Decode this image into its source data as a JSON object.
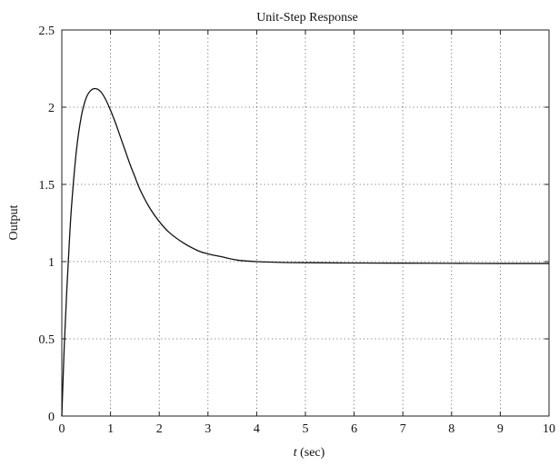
{
  "chart_data": {
    "type": "line",
    "title": "Unit-Step Response",
    "xlabel_italic": "t",
    "xlabel_unit": " (sec)",
    "ylabel": "Output",
    "xlim": [
      0,
      10
    ],
    "ylim": [
      0,
      2.5
    ],
    "xticks": [
      0,
      1,
      2,
      3,
      4,
      5,
      6,
      7,
      8,
      9,
      10
    ],
    "yticks": [
      0,
      0.5,
      1,
      1.5,
      2,
      2.5
    ],
    "grid": true,
    "series": [
      {
        "x": [
          0,
          0.05,
          0.1,
          0.15,
          0.2,
          0.3,
          0.4,
          0.5,
          0.6,
          0.7,
          0.8,
          0.9,
          1.0,
          1.1,
          1.2,
          1.3,
          1.4,
          1.5,
          1.6,
          1.8,
          2.0,
          2.2,
          2.5,
          2.8,
          3.0,
          3.3,
          3.6,
          4.0,
          4.5,
          5.0,
          6.0,
          7.0,
          8.0,
          9.0,
          10.0
        ],
        "y": [
          0,
          0.45,
          0.8,
          1.1,
          1.36,
          1.72,
          1.94,
          2.06,
          2.11,
          2.12,
          2.1,
          2.05,
          1.98,
          1.9,
          1.81,
          1.72,
          1.63,
          1.55,
          1.47,
          1.35,
          1.26,
          1.19,
          1.12,
          1.07,
          1.05,
          1.03,
          1.01,
          1.0,
          0.995,
          0.993,
          0.991,
          0.99,
          0.989,
          0.988,
          0.988
        ]
      }
    ]
  }
}
